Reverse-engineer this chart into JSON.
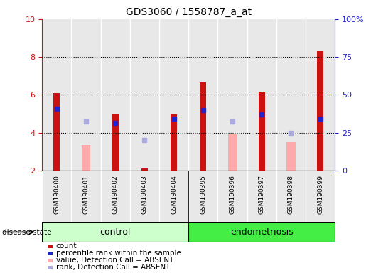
{
  "title": "GDS3060 / 1558787_a_at",
  "samples": [
    "GSM190400",
    "GSM190401",
    "GSM190402",
    "GSM190403",
    "GSM190404",
    "GSM190395",
    "GSM190396",
    "GSM190397",
    "GSM190398",
    "GSM190399"
  ],
  "count_values": [
    6.08,
    null,
    5.0,
    2.1,
    4.95,
    6.65,
    null,
    6.15,
    null,
    8.3
  ],
  "absent_value": [
    null,
    3.35,
    null,
    null,
    null,
    null,
    3.95,
    null,
    3.5,
    null
  ],
  "percentile_rank": [
    5.25,
    null,
    4.5,
    null,
    4.75,
    5.2,
    null,
    4.95,
    null,
    4.75
  ],
  "absent_rank": [
    null,
    4.6,
    null,
    3.6,
    null,
    null,
    4.6,
    null,
    4.0,
    null
  ],
  "ylim": [
    2,
    10
  ],
  "yticks": [
    2,
    4,
    6,
    8,
    10
  ],
  "ytick_labels_left": [
    "2",
    "4",
    "6",
    "8",
    "10"
  ],
  "ylim_right": [
    0,
    100
  ],
  "yticks_right": [
    0,
    25,
    50,
    75,
    100
  ],
  "ytick_labels_right": [
    "0",
    "25",
    "50",
    "75",
    "100%"
  ],
  "color_count": "#cc1111",
  "color_percentile": "#2222cc",
  "color_absent_value": "#ffaaaa",
  "color_absent_rank": "#aaaadd",
  "group_colors": {
    "control": "#ccffcc",
    "endometriosis": "#44ee44"
  },
  "count_bar_width": 0.22,
  "absent_bar_width": 0.3,
  "legend_items": [
    {
      "label": "count",
      "color": "#cc1111"
    },
    {
      "label": "percentile rank within the sample",
      "color": "#2222cc"
    },
    {
      "label": "value, Detection Call = ABSENT",
      "color": "#ffaaaa"
    },
    {
      "label": "rank, Detection Call = ABSENT",
      "color": "#aaaadd"
    }
  ],
  "grid_linestyle": ":",
  "grid_color": "black",
  "col_bg_color": "#e8e8e8",
  "col_border_color": "#ffffff",
  "label_bg_color": "#d8d8d8"
}
